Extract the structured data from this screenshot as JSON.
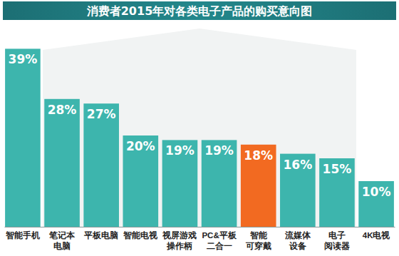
{
  "chart_data": {
    "type": "bar",
    "title": "消费者2015年对各类电子产品的购买意向图",
    "categories": [
      "智能手机",
      "笔记本\n电脑",
      "平板电脑",
      "智能电视",
      "视屏游戏\n操作柄",
      "PC&平板\n二合一",
      "智能\n可穿戴",
      "流媒体\n设备",
      "电子\n阅读器",
      "4K电视"
    ],
    "values": [
      39,
      28,
      27,
      20,
      19,
      19,
      18,
      16,
      15,
      10
    ],
    "value_labels": [
      "39%",
      "28%",
      "27%",
      "20%",
      "19%",
      "19%",
      "18%",
      "16%",
      "15%",
      "10%"
    ],
    "colors": [
      "#3db5ad",
      "#3db5ad",
      "#3db5ad",
      "#3db5ad",
      "#3db5ad",
      "#3db5ad",
      "#f26a21",
      "#3db5ad",
      "#3db5ad",
      "#3db5ad"
    ],
    "ylim": [
      0,
      40
    ],
    "data_labels": true,
    "tick_labels": "x"
  }
}
